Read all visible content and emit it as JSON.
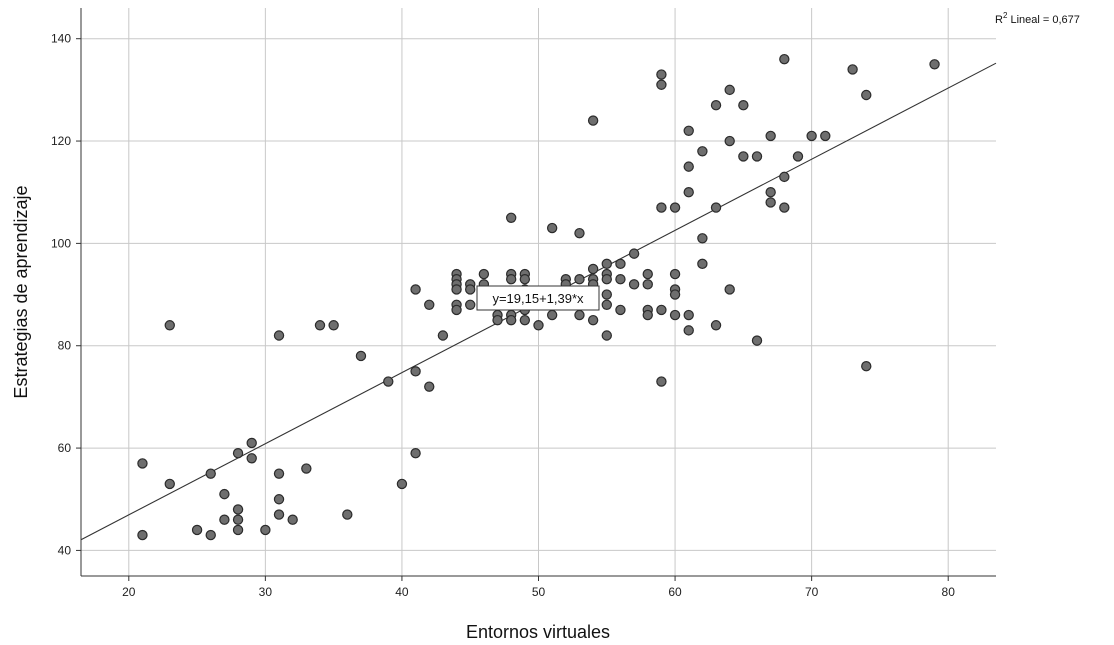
{
  "chart_data": {
    "type": "scatter",
    "xlabel": "Entornos virtuales",
    "ylabel": "Estrategias de aprendizaje",
    "xlim": [
      16.5,
      83.5
    ],
    "ylim": [
      35,
      146
    ],
    "xticks": [
      20,
      30,
      40,
      50,
      60,
      70,
      80
    ],
    "yticks": [
      40,
      60,
      80,
      100,
      120,
      140
    ],
    "grid": true,
    "fit_line": {
      "intercept": 19.15,
      "slope": 1.39
    },
    "equation_label": "y=19,15+1,39*x",
    "r2_prefix": "R",
    "r2_sup": "2",
    "r2_suffix": " Lineal = 0,677",
    "marker_fill": "#6e6e6e",
    "marker_stroke": "#2b2b2b",
    "points": [
      [
        21,
        57
      ],
      [
        21,
        43
      ],
      [
        23,
        84
      ],
      [
        23,
        53
      ],
      [
        25,
        44
      ],
      [
        26,
        55
      ],
      [
        26,
        43
      ],
      [
        27,
        51
      ],
      [
        27,
        46
      ],
      [
        28,
        59
      ],
      [
        28,
        48
      ],
      [
        28,
        46
      ],
      [
        28,
        44
      ],
      [
        29,
        61
      ],
      [
        29,
        58
      ],
      [
        30,
        44
      ],
      [
        31,
        82
      ],
      [
        31,
        55
      ],
      [
        31,
        50
      ],
      [
        31,
        47
      ],
      [
        32,
        46
      ],
      [
        33,
        56
      ],
      [
        34,
        84
      ],
      [
        35,
        84
      ],
      [
        36,
        47
      ],
      [
        37,
        78
      ],
      [
        39,
        73
      ],
      [
        40,
        53
      ],
      [
        41,
        91
      ],
      [
        41,
        75
      ],
      [
        41,
        59
      ],
      [
        42,
        88
      ],
      [
        42,
        72
      ],
      [
        43,
        82
      ],
      [
        44,
        94
      ],
      [
        44,
        93
      ],
      [
        44,
        92
      ],
      [
        44,
        91
      ],
      [
        44,
        88
      ],
      [
        44,
        87
      ],
      [
        45,
        92
      ],
      [
        45,
        91
      ],
      [
        45,
        88
      ],
      [
        46,
        94
      ],
      [
        46,
        92
      ],
      [
        46,
        90
      ],
      [
        46,
        88
      ],
      [
        47,
        86
      ],
      [
        47,
        85
      ],
      [
        48,
        105
      ],
      [
        48,
        94
      ],
      [
        48,
        93
      ],
      [
        48,
        90
      ],
      [
        48,
        88
      ],
      [
        48,
        86
      ],
      [
        48,
        85
      ],
      [
        49,
        94
      ],
      [
        49,
        93
      ],
      [
        49,
        91
      ],
      [
        49,
        89
      ],
      [
        49,
        87
      ],
      [
        49,
        85
      ],
      [
        50,
        84
      ],
      [
        51,
        103
      ],
      [
        51,
        86
      ],
      [
        52,
        93
      ],
      [
        52,
        92
      ],
      [
        52,
        88
      ],
      [
        53,
        102
      ],
      [
        53,
        93
      ],
      [
        53,
        88
      ],
      [
        53,
        86
      ],
      [
        54,
        124
      ],
      [
        54,
        95
      ],
      [
        54,
        93
      ],
      [
        54,
        92
      ],
      [
        54,
        90
      ],
      [
        54,
        88
      ],
      [
        54,
        85
      ],
      [
        55,
        96
      ],
      [
        55,
        94
      ],
      [
        55,
        93
      ],
      [
        55,
        90
      ],
      [
        55,
        88
      ],
      [
        55,
        82
      ],
      [
        56,
        96
      ],
      [
        56,
        93
      ],
      [
        56,
        87
      ],
      [
        57,
        98
      ],
      [
        57,
        92
      ],
      [
        58,
        94
      ],
      [
        58,
        92
      ],
      [
        58,
        87
      ],
      [
        58,
        86
      ],
      [
        59,
        133
      ],
      [
        59,
        131
      ],
      [
        59,
        107
      ],
      [
        59,
        87
      ],
      [
        59,
        73
      ],
      [
        60,
        107
      ],
      [
        60,
        94
      ],
      [
        60,
        91
      ],
      [
        60,
        90
      ],
      [
        60,
        86
      ],
      [
        61,
        122
      ],
      [
        61,
        115
      ],
      [
        61,
        110
      ],
      [
        61,
        86
      ],
      [
        61,
        83
      ],
      [
        62,
        118
      ],
      [
        62,
        101
      ],
      [
        62,
        96
      ],
      [
        63,
        127
      ],
      [
        63,
        107
      ],
      [
        63,
        84
      ],
      [
        64,
        130
      ],
      [
        64,
        120
      ],
      [
        64,
        91
      ],
      [
        65,
        127
      ],
      [
        65,
        117
      ],
      [
        66,
        117
      ],
      [
        66,
        81
      ],
      [
        67,
        121
      ],
      [
        67,
        110
      ],
      [
        67,
        108
      ],
      [
        68,
        136
      ],
      [
        68,
        113
      ],
      [
        68,
        107
      ],
      [
        69,
        117
      ],
      [
        70,
        121
      ],
      [
        71,
        121
      ],
      [
        73,
        134
      ],
      [
        74,
        129
      ],
      [
        74,
        76
      ],
      [
        79,
        135
      ]
    ]
  }
}
